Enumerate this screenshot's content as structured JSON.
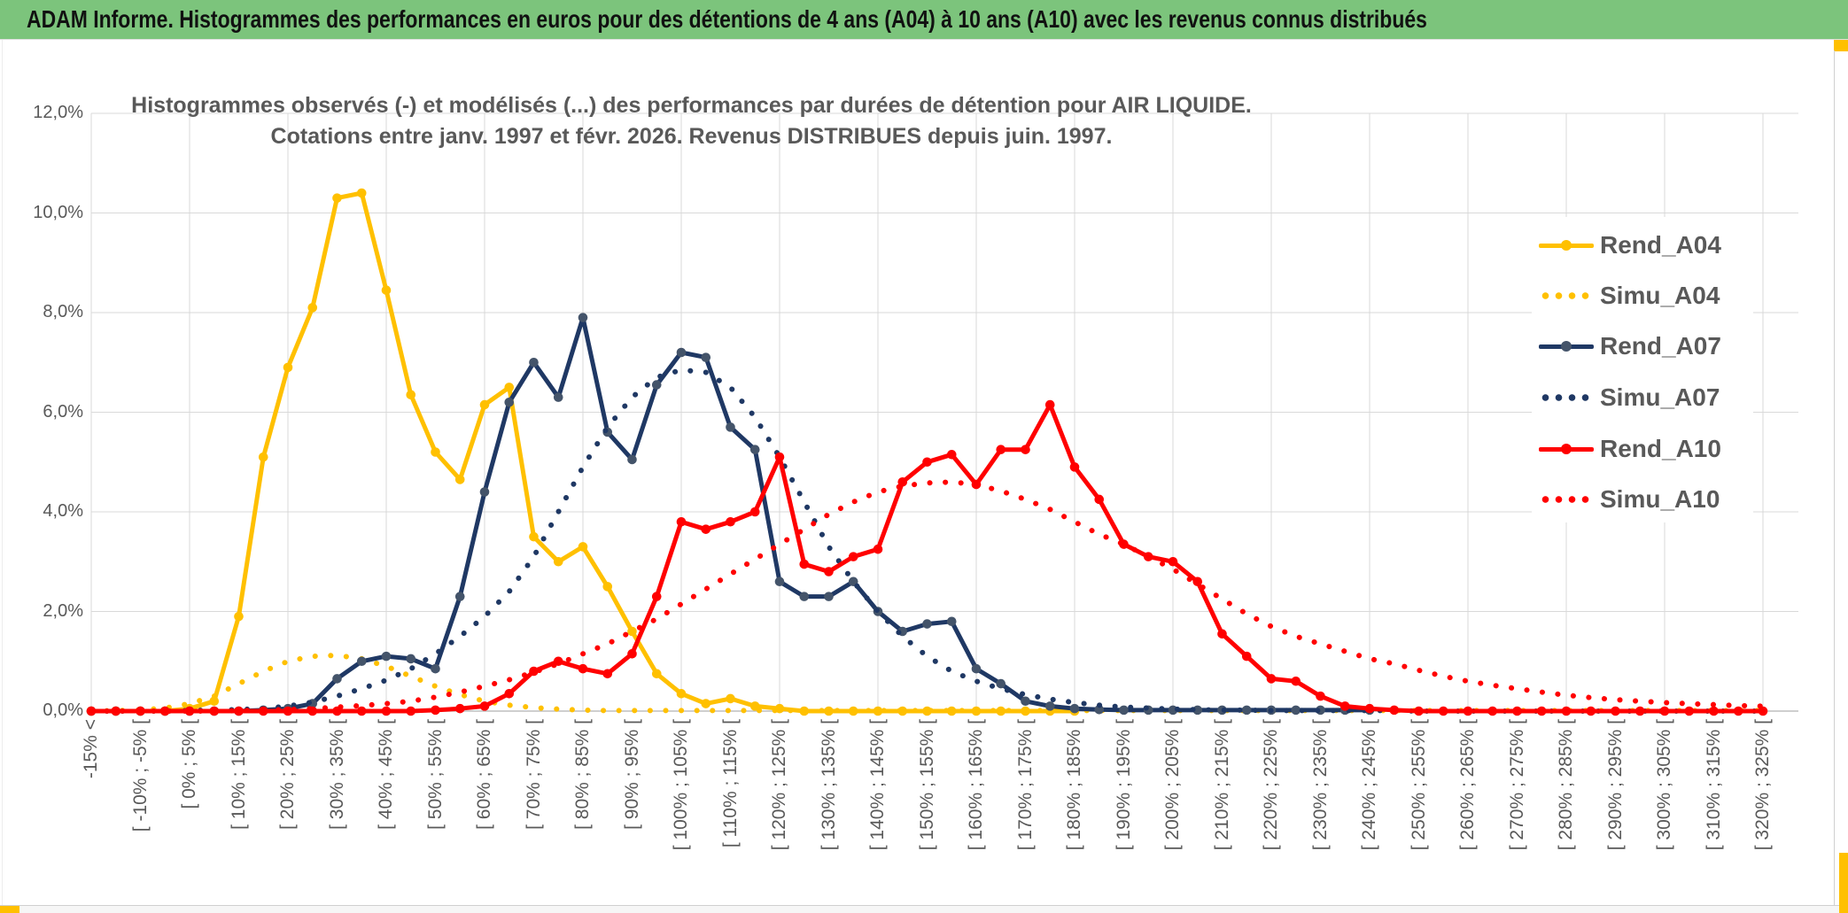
{
  "sheet_header": {
    "title": "ADAM Informe. Histogrammes des performances en euros pour des détentions de 4 ans (A04) à 10 ans (A10) avec les revenus connus distribués",
    "background_color": "#7cc47c",
    "accent_color": "#ffc000"
  },
  "chart_data": {
    "type": "line",
    "title": "Histogrammes observés (-) et modélisés (...) des performances par durées de détention pour AIR LIQUIDE.",
    "subtitle": "Cotations entre janv. 1997 et févr. 2026. Revenus DISTRIBUES depuis juin. 1997.",
    "ylabel": "",
    "xlabel": "",
    "ylim": [
      0,
      12
    ],
    "grid": true,
    "legend_position": "right",
    "y_ticks": [
      {
        "v": 0,
        "label": "0,0%"
      },
      {
        "v": 2,
        "label": "2,0%"
      },
      {
        "v": 4,
        "label": "4,0%"
      },
      {
        "v": 6,
        "label": "6,0%"
      },
      {
        "v": 8,
        "label": "8,0%"
      },
      {
        "v": 10,
        "label": "10,0%"
      },
      {
        "v": 12,
        "label": "12,0%"
      }
    ],
    "x_bin_count": 69,
    "x_label_every": 2,
    "x_gridline_every": 4,
    "x_tick_labels": [
      "-15% <",
      "[ -10% ; -5% [",
      "[ 0% ; 5% [",
      "[ 10% ; 15% [",
      "[ 20% ; 25% [",
      "[ 30% ; 35% [",
      "[ 40% ; 45% [",
      "[ 50% ; 55% [",
      "[ 60% ; 65% [",
      "[ 70% ; 75% [",
      "[ 80% ; 85% [",
      "[ 90% ; 95% [",
      "[ 100% ; 105% [",
      "[ 110% ; 115% [",
      "[ 120% ; 125% [",
      "[ 130% ; 135% [",
      "[ 140% ; 145% [",
      "[ 150% ; 155% [",
      "[ 160% ; 165% [",
      "[ 170% ; 175% [",
      "[ 180% ; 185% [",
      "[ 190% ; 195% [",
      "[ 200% ; 205% [",
      "[ 210% ; 215% [",
      "[ 220% ; 225% [",
      "[ 230% ; 235% [",
      "[ 240% ; 245% [",
      "[ 250% ; 255% [",
      "[ 260% ; 265% [",
      "[ 270% ; 275% [",
      "[ 280% ; 285% [",
      "[ 290% ; 295% [",
      "[ 300% ; 305% [",
      "[ 310% ; 315% [",
      "[ 320% ; 325% ["
    ],
    "series": [
      {
        "name": "Rend_A04",
        "style": "solid",
        "color": "#FFC000",
        "marker_color": "#FFC000",
        "values": [
          0,
          0,
          0,
          0,
          0.05,
          0.2,
          1.9,
          5.1,
          6.9,
          8.1,
          10.3,
          10.4,
          8.45,
          6.35,
          5.2,
          4.65,
          6.15,
          6.5,
          3.5,
          3.0,
          3.3,
          2.5,
          1.6,
          0.75,
          0.35,
          0.15,
          0.25,
          0.1,
          0.05,
          0,
          0,
          0,
          0,
          0,
          0,
          0,
          0,
          0,
          0,
          0,
          0,
          null,
          null,
          null,
          null,
          null,
          null,
          null,
          null,
          null,
          null,
          null,
          null,
          null,
          null,
          null,
          null,
          null,
          null,
          null,
          null,
          null,
          null,
          null,
          null,
          null,
          null,
          null,
          null
        ]
      },
      {
        "name": "Simu_A04",
        "style": "dotted",
        "color": "#FFC000",
        "values": [
          0,
          0.01,
          0.02,
          0.06,
          0.15,
          0.3,
          0.55,
          0.8,
          1.0,
          1.1,
          1.12,
          1.05,
          0.9,
          0.7,
          0.5,
          0.33,
          0.2,
          0.12,
          0.07,
          0.04,
          0.02,
          0.01,
          0.01,
          0.01,
          0.01,
          0.01,
          0.01,
          0.01,
          0.01,
          0.01,
          0.01,
          0.01,
          0.01,
          0.01,
          0.01,
          0.01,
          0.01,
          0.01,
          0.01,
          0.01,
          0.01,
          0.01,
          0.01,
          0.01,
          0.01,
          0.01,
          0.01,
          0.01,
          0.01,
          0.01,
          0.01,
          0.01,
          0.01,
          0.01,
          0.01,
          0.01,
          0.01,
          0.01,
          0.01,
          0.01,
          0.01,
          0.01,
          0.01,
          0.01,
          0.01,
          0.01,
          0.01,
          0.01,
          0.01
        ]
      },
      {
        "name": "Rend_A07",
        "style": "solid",
        "color": "#1F3864",
        "marker_color": "#44546A",
        "values": [
          0,
          0,
          0,
          0,
          0,
          0,
          0,
          0.02,
          0.05,
          0.15,
          0.65,
          1.0,
          1.1,
          1.05,
          0.85,
          2.3,
          4.4,
          6.2,
          7.0,
          6.3,
          7.9,
          5.6,
          5.05,
          6.55,
          7.2,
          7.1,
          5.7,
          5.25,
          2.6,
          2.3,
          2.3,
          2.6,
          2.0,
          1.6,
          1.75,
          1.8,
          0.85,
          0.55,
          0.2,
          0.1,
          0.05,
          0.03,
          0.02,
          0.02,
          0.02,
          0.02,
          0.02,
          0.02,
          0.02,
          0.02,
          0.02,
          0.02,
          0.02,
          null,
          null,
          null,
          null,
          null,
          null,
          null,
          null,
          null,
          null,
          null,
          null,
          null,
          null,
          null,
          null
        ]
      },
      {
        "name": "Simu_A07",
        "style": "dotted",
        "color": "#1F3864",
        "values": [
          0,
          0,
          0,
          0,
          0.01,
          0.02,
          0.03,
          0.05,
          0.1,
          0.18,
          0.3,
          0.45,
          0.62,
          0.85,
          1.15,
          1.5,
          1.9,
          2.4,
          3.1,
          4.0,
          4.9,
          5.7,
          6.3,
          6.7,
          6.85,
          6.8,
          6.5,
          5.9,
          5.1,
          4.2,
          3.3,
          2.6,
          2.0,
          1.5,
          1.1,
          0.8,
          0.6,
          0.45,
          0.33,
          0.24,
          0.17,
          0.12,
          0.08,
          0.06,
          0.04,
          0.03,
          0.02,
          0.02,
          0.01,
          0.01,
          0.01,
          0.01,
          0.01,
          0.01,
          0,
          0,
          0,
          0,
          0,
          0,
          0,
          0,
          0,
          0,
          0,
          0,
          0,
          0,
          0
        ]
      },
      {
        "name": "Rend_A10",
        "style": "solid",
        "color": "#FF0000",
        "marker_color": "#FF0000",
        "values": [
          0,
          0,
          0,
          0,
          0,
          0,
          0,
          0,
          0,
          0,
          0,
          0,
          0,
          0,
          0.02,
          0.05,
          0.1,
          0.35,
          0.8,
          1.0,
          0.85,
          0.75,
          1.15,
          2.3,
          3.8,
          3.65,
          3.8,
          4.0,
          5.1,
          2.95,
          2.8,
          3.1,
          3.25,
          4.6,
          5.0,
          5.15,
          4.55,
          5.25,
          5.25,
          6.15,
          4.9,
          4.25,
          3.35,
          3.1,
          3.0,
          2.6,
          1.55,
          1.1,
          0.65,
          0.6,
          0.3,
          0.1,
          0.05,
          0.02,
          0,
          0,
          0,
          0,
          0,
          0,
          0,
          0,
          0,
          0,
          0,
          0,
          0,
          0,
          0
        ]
      },
      {
        "name": "Simu_A10",
        "style": "dotted",
        "color": "#FF0000",
        "values": [
          0,
          0,
          0,
          0,
          0,
          0,
          0.01,
          0.02,
          0.03,
          0.05,
          0.08,
          0.11,
          0.15,
          0.2,
          0.28,
          0.38,
          0.5,
          0.63,
          0.78,
          0.95,
          1.15,
          1.35,
          1.6,
          1.85,
          2.15,
          2.45,
          2.75,
          3.05,
          3.35,
          3.65,
          3.95,
          4.2,
          4.4,
          4.52,
          4.58,
          4.6,
          4.55,
          4.42,
          4.25,
          4.05,
          3.8,
          3.55,
          3.35,
          3.1,
          2.85,
          2.55,
          2.25,
          1.95,
          1.7,
          1.5,
          1.35,
          1.2,
          1.05,
          0.95,
          0.82,
          0.7,
          0.6,
          0.52,
          0.45,
          0.38,
          0.32,
          0.27,
          0.23,
          0.2,
          0.17,
          0.15,
          0.13,
          0.11,
          0.1
        ]
      }
    ],
    "colors": {
      "gridline": "#D9D9D9",
      "axis_text": "#595959",
      "title_text": "#595959"
    }
  }
}
